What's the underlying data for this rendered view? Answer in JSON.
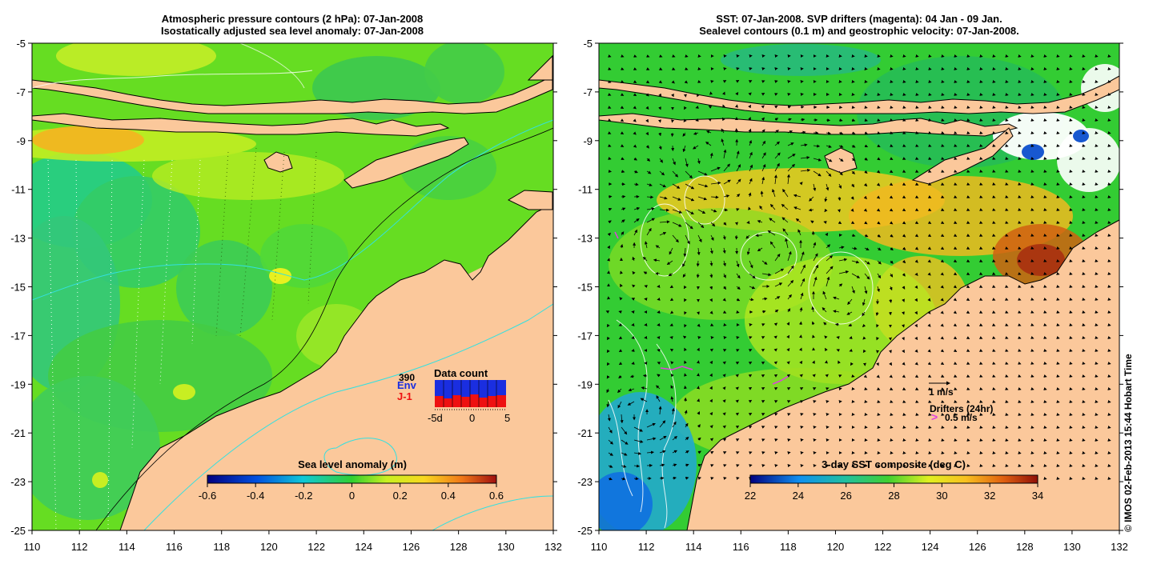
{
  "left_panel": {
    "title_line1": "Atmospheric pressure contours (2 hPa): 07-Jan-2008",
    "title_line2": "Isostatically adjusted sea level anomaly: 07-Jan-2008",
    "colorbar_label": "Sea level anomaly (m)",
    "colorbar_ticks": [
      "-0.6",
      "-0.4",
      "-0.2",
      "0",
      "0.2",
      "0.4",
      "0.6"
    ],
    "inset": {
      "title": "Data count",
      "count_value": "390",
      "env_label": "Env",
      "j1_label": "J-1",
      "x_ticks": [
        "-5d",
        "0",
        "5"
      ]
    }
  },
  "right_panel": {
    "title_line1": "SST: 07-Jan-2008. SVP drifters (magenta): 04 Jan - 09 Jan.",
    "title_line2": "Sealevel contours (0.1 m) and geostrophic velocity: 07-Jan-2008.",
    "colorbar_label": "3-day SST composite (deg C)",
    "colorbar_ticks": [
      "22",
      "24",
      "26",
      "28",
      "30",
      "32",
      "34"
    ],
    "velocity_scale_label": "1 m/s",
    "drifters_label": "Drifters (24hr)",
    "drifter_scale_label": "0.5 m/s"
  },
  "axes": {
    "lat_labels": [
      "-5",
      "-7",
      "-9",
      "-11",
      "-13",
      "-15",
      "-17",
      "-19",
      "-21",
      "-23",
      "-25"
    ],
    "lon_labels": [
      "110",
      "112",
      "114",
      "116",
      "118",
      "120",
      "122",
      "124",
      "126",
      "128",
      "130",
      "132"
    ]
  },
  "credit": "© IMOS 02-Feb-2013 15:44 Hobart Time",
  "colors": {
    "land": "#fbc89b",
    "sla_base": "#66dd22",
    "sst_base": "#33cc33",
    "drifter": "#e040e0"
  }
}
